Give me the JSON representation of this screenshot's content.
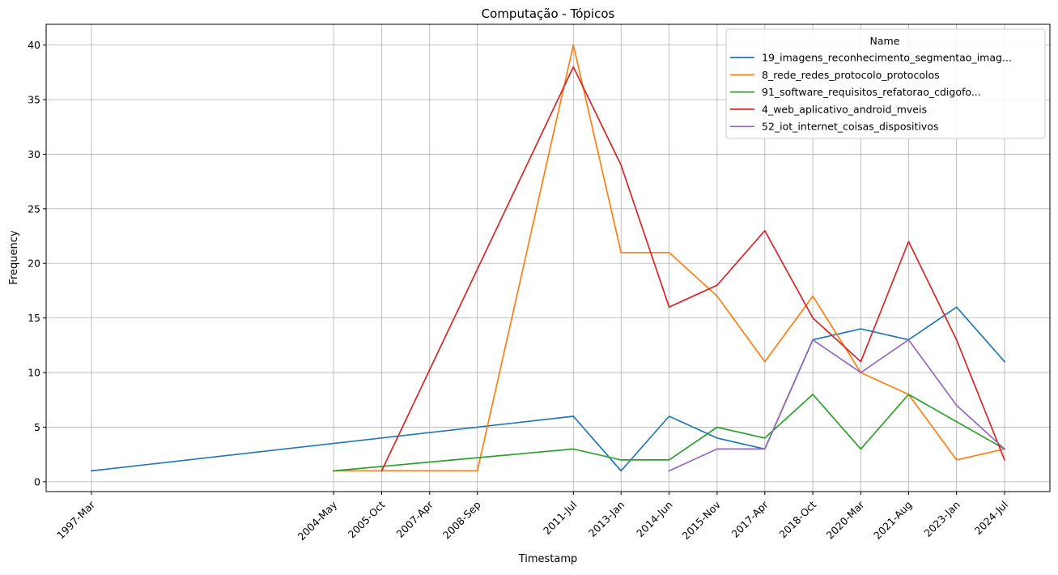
{
  "chart_data": {
    "type": "line",
    "title": "Computação - Tópicos",
    "xlabel": "Timestamp",
    "ylabel": "Frequency",
    "ylim": [
      -0.9,
      41.9
    ],
    "yticks": [
      0,
      5,
      10,
      15,
      20,
      25,
      30,
      35,
      40
    ],
    "grid": true,
    "legend_title": "Name",
    "legend_position": "top-right",
    "x_ticks": [
      {
        "label": "1997-Mar",
        "t": 1997.17
      },
      {
        "label": "2004-May",
        "t": 2004.33
      },
      {
        "label": "2005-Oct",
        "t": 2005.75
      },
      {
        "label": "2007-Apr",
        "t": 2007.17
      },
      {
        "label": "2008-Sep",
        "t": 2008.58
      },
      {
        "label": "2011-Jul",
        "t": 2011.42
      },
      {
        "label": "2013-Jan",
        "t": 2012.83
      },
      {
        "label": "2014-Jun",
        "t": 2014.25
      },
      {
        "label": "2015-Nov",
        "t": 2015.67
      },
      {
        "label": "2017-Apr",
        "t": 2017.08
      },
      {
        "label": "2018-Oct",
        "t": 2018.5
      },
      {
        "label": "2020-Mar",
        "t": 2019.92
      },
      {
        "label": "2021-Aug",
        "t": 2021.33
      },
      {
        "label": "2023-Jan",
        "t": 2022.75
      },
      {
        "label": "2024-Jul",
        "t": 2024.17
      }
    ],
    "series": [
      {
        "name": "19_imagens_reconhecimento_segmentao_imag...",
        "color": "#1f77b4",
        "x": [
          "1997-Mar",
          "2011-Jul",
          "2013-Jan",
          "2014-Jun",
          "2015-Nov",
          "2017-Apr",
          "2018-Oct",
          "2020-Mar",
          "2021-Aug",
          "2023-Jan",
          "2024-Jul"
        ],
        "values": [
          1,
          6,
          1,
          6,
          4,
          3,
          13,
          14,
          13,
          16,
          11
        ]
      },
      {
        "name": "8_rede_redes_protocolo_protocolos",
        "color": "#ff7f0e",
        "x": [
          "2004-May",
          "2008-Sep",
          "2011-Jul",
          "2013-Jan",
          "2014-Jun",
          "2015-Nov",
          "2017-Apr",
          "2018-Oct",
          "2020-Mar",
          "2021-Aug",
          "2023-Jan",
          "2024-Jul"
        ],
        "values": [
          1,
          1,
          40,
          21,
          21,
          17,
          11,
          17,
          10,
          8,
          2,
          3
        ]
      },
      {
        "name": "91_software_requisitos_refatorao_cdigofo...",
        "color": "#2ca02c",
        "x": [
          "2004-May",
          "2011-Jul",
          "2013-Jan",
          "2014-Jun",
          "2015-Nov",
          "2017-Apr",
          "2018-Oct",
          "2020-Mar",
          "2021-Aug",
          "2024-Jul"
        ],
        "values": [
          1,
          3,
          2,
          2,
          5,
          4,
          8,
          3,
          8,
          3
        ]
      },
      {
        "name": "4_web_aplicativo_android_mveis",
        "color": "#d62728",
        "x": [
          "2005-Oct",
          "2011-Jul",
          "2013-Jan",
          "2014-Jun",
          "2015-Nov",
          "2017-Apr",
          "2018-Oct",
          "2020-Mar",
          "2021-Aug",
          "2023-Jan",
          "2024-Jul"
        ],
        "values": [
          1,
          38,
          29,
          16,
          18,
          23,
          15,
          11,
          22,
          13,
          2
        ]
      },
      {
        "name": "52_iot_internet_coisas_dispositivos",
        "color": "#9467bd",
        "x": [
          "2014-Jun",
          "2015-Nov",
          "2017-Apr",
          "2018-Oct",
          "2020-Mar",
          "2021-Aug",
          "2023-Jan",
          "2024-Jul"
        ],
        "values": [
          1,
          3,
          3,
          13,
          10,
          13,
          7,
          3
        ]
      }
    ]
  }
}
